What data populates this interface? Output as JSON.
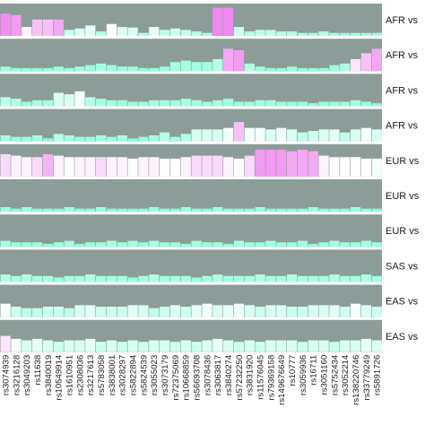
{
  "chart_data": {
    "type": "bar",
    "colors": {
      "panel": "#8c9c98",
      "low": "#7fffd4",
      "mid": "#ffffff",
      "high": "#ee82ee"
    },
    "categories": [
      "rs3074939",
      "rs3216128",
      "rs3049203",
      "rs11638",
      "rs3840019",
      "rs10549914",
      "rs1610951",
      "rs2308036",
      "rs3217613",
      "rs5783058",
      "rs3838001",
      "rs3028297",
      "rs5822894",
      "rs5824539",
      "rs3055023",
      "rs3073179",
      "rs72375069",
      "rs10668859",
      "rs56693708",
      "rs3078436",
      "rs3063817",
      "rs3840274",
      "rs57232250",
      "rs3831920",
      "rs11576045",
      "rs79369158",
      "rs149676649",
      "rs10777",
      "rs3059936",
      "rs16711",
      "rs3051160",
      "rs5752434",
      "rs3052214",
      "rs138220746",
      "rs33779249",
      "rs5891726"
    ],
    "rows": [
      {
        "label": "AFR vs",
        "values": [
          0.75,
          0.7,
          0.3,
          0.55,
          0.55,
          0.55,
          0.2,
          0.25,
          0.35,
          0.15,
          0.4,
          0.3,
          0.28,
          0.1,
          0.3,
          0.2,
          0.25,
          0.2,
          0.15,
          0.1,
          0.95,
          0.95,
          0.3,
          0.15,
          0.2,
          0.2,
          0.15,
          0.15,
          0.1,
          0.1,
          0.15,
          0.1,
          0.1,
          0.1,
          0.1,
          0.1
        ],
        "fill": [
          0.95,
          0.9,
          0.55,
          0.75,
          0.75,
          0.85,
          0.3,
          0.35,
          0.4,
          0.2,
          0.5,
          0.35,
          0.35,
          0.2,
          0.4,
          0.25,
          0.3,
          0.25,
          0.2,
          0.15,
          0.98,
          0.98,
          0.3,
          0.2,
          0.25,
          0.25,
          0.2,
          0.2,
          0.15,
          0.15,
          0.2,
          0.15,
          0.15,
          0.15,
          0.15,
          0.15
        ]
      },
      {
        "label": "AFR vs",
        "values": [
          0.15,
          0.1,
          0.1,
          0.1,
          0.1,
          0.15,
          0.1,
          0.15,
          0.2,
          0.25,
          0.2,
          0.15,
          0.15,
          0.1,
          0.1,
          0.15,
          0.3,
          0.35,
          0.3,
          0.3,
          0.4,
          0.75,
          0.7,
          0.25,
          0.15,
          0.1,
          0.1,
          0.15,
          0.1,
          0.1,
          0.1,
          0.2,
          0.25,
          0.4,
          0.6,
          0.75
        ],
        "fill": [
          0.1,
          0.05,
          0.05,
          0.05,
          0.05,
          0.1,
          0.05,
          0.1,
          0.1,
          0.15,
          0.1,
          0.1,
          0.1,
          0.05,
          0.05,
          0.1,
          0.15,
          0.15,
          0.15,
          0.15,
          0.2,
          0.85,
          0.9,
          0.2,
          0.1,
          0.05,
          0.05,
          0.1,
          0.05,
          0.05,
          0.05,
          0.1,
          0.2,
          0.6,
          0.75,
          0.85
        ]
      },
      {
        "label": "AFR vs",
        "values": [
          0.3,
          0.25,
          0.15,
          0.2,
          0.2,
          0.45,
          0.4,
          0.5,
          0.3,
          0.25,
          0.2,
          0.2,
          0.15,
          0.15,
          0.2,
          0.2,
          0.2,
          0.25,
          0.2,
          0.15,
          0.2,
          0.25,
          0.15,
          0.15,
          0.2,
          0.2,
          0.15,
          0.15,
          0.15,
          0.1,
          0.15,
          0.15,
          0.15,
          0.2,
          0.15,
          0.1
        ],
        "fill": [
          0.25,
          0.2,
          0.1,
          0.15,
          0.15,
          0.35,
          0.35,
          0.45,
          0.2,
          0.15,
          0.15,
          0.15,
          0.1,
          0.1,
          0.15,
          0.15,
          0.15,
          0.15,
          0.15,
          0.1,
          0.15,
          0.15,
          0.1,
          0.1,
          0.15,
          0.15,
          0.1,
          0.1,
          0.1,
          0.05,
          0.1,
          0.1,
          0.1,
          0.15,
          0.1,
          0.05
        ]
      },
      {
        "label": "AFR vs",
        "values": [
          0.2,
          0.15,
          0.15,
          0.2,
          0.1,
          0.25,
          0.2,
          0.15,
          0.15,
          0.2,
          0.15,
          0.2,
          0.1,
          0.15,
          0.2,
          0.3,
          0.15,
          0.25,
          0.4,
          0.4,
          0.4,
          0.45,
          0.65,
          0.45,
          0.45,
          0.4,
          0.45,
          0.4,
          0.3,
          0.35,
          0.4,
          0.4,
          0.3,
          0.4,
          0.45,
          0.4
        ],
        "fill": [
          0.15,
          0.1,
          0.1,
          0.15,
          0.05,
          0.2,
          0.15,
          0.1,
          0.1,
          0.15,
          0.1,
          0.15,
          0.05,
          0.1,
          0.15,
          0.2,
          0.1,
          0.2,
          0.35,
          0.35,
          0.35,
          0.45,
          0.75,
          0.45,
          0.45,
          0.35,
          0.45,
          0.35,
          0.25,
          0.3,
          0.35,
          0.4,
          0.25,
          0.35,
          0.45,
          0.35
        ]
      },
      {
        "label": "EUR vs",
        "values": [
          0.75,
          0.7,
          0.65,
          0.65,
          0.75,
          0.7,
          0.65,
          0.65,
          0.65,
          0.65,
          0.65,
          0.65,
          0.6,
          0.65,
          0.65,
          0.6,
          0.6,
          0.65,
          0.7,
          0.7,
          0.7,
          0.65,
          0.6,
          0.7,
          0.9,
          0.9,
          0.9,
          0.85,
          0.9,
          0.85,
          0.7,
          0.65,
          0.65,
          0.65,
          0.6,
          0.6
        ],
        "fill": [
          0.65,
          0.55,
          0.55,
          0.65,
          0.8,
          0.55,
          0.5,
          0.55,
          0.55,
          0.65,
          0.55,
          0.55,
          0.5,
          0.55,
          0.55,
          0.5,
          0.5,
          0.55,
          0.65,
          0.65,
          0.65,
          0.55,
          0.5,
          0.65,
          0.9,
          0.9,
          0.9,
          0.85,
          0.85,
          0.85,
          0.55,
          0.5,
          0.5,
          0.5,
          0.5,
          0.45
        ]
      },
      {
        "label": "EUR vs",
        "values": [
          0.15,
          0.1,
          0.15,
          0.1,
          0.1,
          0.1,
          0.15,
          0.1,
          0.1,
          0.15,
          0.1,
          0.1,
          0.1,
          0.1,
          0.15,
          0.1,
          0.1,
          0.15,
          0.1,
          0.1,
          0.15,
          0.1,
          0.1,
          0.1,
          0.15,
          0.1,
          0.1,
          0.1,
          0.1,
          0.15,
          0.1,
          0.1,
          0.1,
          0.15,
          0.1,
          0.1
        ],
        "fill": [
          0.1,
          0.05,
          0.1,
          0.05,
          0.05,
          0.05,
          0.1,
          0.05,
          0.05,
          0.1,
          0.05,
          0.05,
          0.05,
          0.05,
          0.1,
          0.05,
          0.05,
          0.1,
          0.05,
          0.05,
          0.1,
          0.05,
          0.05,
          0.05,
          0.1,
          0.05,
          0.05,
          0.05,
          0.05,
          0.1,
          0.05,
          0.05,
          0.05,
          0.1,
          0.05,
          0.05
        ]
      },
      {
        "label": "EUR vs",
        "values": [
          0.2,
          0.15,
          0.15,
          0.15,
          0.1,
          0.15,
          0.2,
          0.1,
          0.15,
          0.15,
          0.2,
          0.15,
          0.2,
          0.15,
          0.2,
          0.15,
          0.15,
          0.1,
          0.2,
          0.15,
          0.15,
          0.1,
          0.2,
          0.15,
          0.15,
          0.2,
          0.15,
          0.15,
          0.2,
          0.1,
          0.15,
          0.2,
          0.15,
          0.15,
          0.2,
          0.15
        ],
        "fill": [
          0.15,
          0.1,
          0.1,
          0.1,
          0.05,
          0.1,
          0.15,
          0.05,
          0.1,
          0.1,
          0.15,
          0.1,
          0.15,
          0.1,
          0.15,
          0.1,
          0.1,
          0.05,
          0.15,
          0.1,
          0.1,
          0.05,
          0.15,
          0.1,
          0.1,
          0.15,
          0.1,
          0.1,
          0.15,
          0.05,
          0.1,
          0.15,
          0.1,
          0.1,
          0.15,
          0.1
        ]
      },
      {
        "label": "SAS vs",
        "values": [
          0.25,
          0.2,
          0.25,
          0.2,
          0.2,
          0.15,
          0.2,
          0.2,
          0.25,
          0.2,
          0.2,
          0.2,
          0.15,
          0.2,
          0.25,
          0.2,
          0.2,
          0.2,
          0.15,
          0.2,
          0.25,
          0.2,
          0.2,
          0.2,
          0.25,
          0.2,
          0.2,
          0.25,
          0.2,
          0.2,
          0.2,
          0.25,
          0.2,
          0.2,
          0.25,
          0.2
        ],
        "fill": [
          0.2,
          0.15,
          0.2,
          0.15,
          0.15,
          0.1,
          0.15,
          0.15,
          0.2,
          0.15,
          0.15,
          0.15,
          0.1,
          0.15,
          0.2,
          0.15,
          0.15,
          0.15,
          0.1,
          0.15,
          0.2,
          0.15,
          0.15,
          0.15,
          0.2,
          0.15,
          0.15,
          0.2,
          0.15,
          0.15,
          0.15,
          0.2,
          0.15,
          0.15,
          0.2,
          0.15
        ]
      },
      {
        "label": "EAS vs",
        "values": [
          0.45,
          0.35,
          0.3,
          0.3,
          0.35,
          0.35,
          0.3,
          0.4,
          0.4,
          0.35,
          0.35,
          0.35,
          0.4,
          0.4,
          0.3,
          0.35,
          0.4,
          0.35,
          0.4,
          0.45,
          0.4,
          0.4,
          0.45,
          0.4,
          0.35,
          0.4,
          0.4,
          0.35,
          0.35,
          0.4,
          0.4,
          0.4,
          0.35,
          0.45,
          0.4,
          0.35
        ],
        "fill": [
          0.45,
          0.3,
          0.25,
          0.25,
          0.3,
          0.3,
          0.25,
          0.35,
          0.4,
          0.3,
          0.3,
          0.3,
          0.4,
          0.35,
          0.25,
          0.3,
          0.35,
          0.3,
          0.4,
          0.45,
          0.35,
          0.4,
          0.45,
          0.35,
          0.3,
          0.35,
          0.35,
          0.3,
          0.3,
          0.35,
          0.35,
          0.4,
          0.3,
          0.45,
          0.35,
          0.3
        ]
      },
      {
        "label": "EAS vs",
        "values": [
          0.55,
          0.45,
          0.4,
          0.45,
          0.4,
          0.35,
          0.4,
          0.4,
          0.45,
          0.35,
          0.4,
          0.35,
          0.4,
          0.35,
          0.4,
          0.4,
          0.35,
          0.4,
          0.35,
          0.4,
          0.45,
          0.4,
          0.35,
          0.4,
          0.35,
          0.4,
          0.4,
          0.4,
          0.35,
          0.4,
          0.4,
          0.35,
          0.4,
          0.4,
          0.45,
          0.4
        ],
        "fill": [
          0.6,
          0.45,
          0.35,
          0.4,
          0.35,
          0.3,
          0.35,
          0.35,
          0.4,
          0.3,
          0.35,
          0.3,
          0.35,
          0.3,
          0.35,
          0.35,
          0.3,
          0.35,
          0.3,
          0.35,
          0.4,
          0.35,
          0.3,
          0.35,
          0.3,
          0.35,
          0.35,
          0.35,
          0.3,
          0.35,
          0.35,
          0.3,
          0.35,
          0.35,
          0.4,
          0.35
        ]
      }
    ]
  }
}
